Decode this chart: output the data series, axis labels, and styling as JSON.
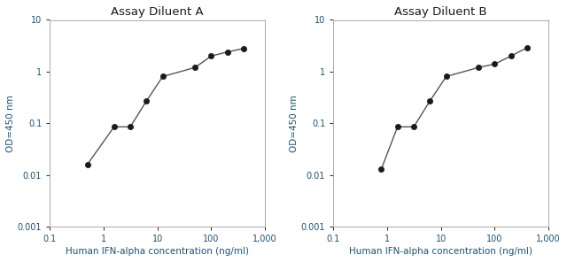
{
  "chart_A": {
    "title": "Assay Diluent A",
    "x": [
      0.5,
      1.56,
      3.125,
      6.25,
      12.5,
      50,
      100,
      200,
      400
    ],
    "y": [
      0.016,
      0.085,
      0.085,
      0.27,
      0.8,
      1.2,
      2.0,
      2.4,
      2.8
    ]
  },
  "chart_B": {
    "title": "Assay Diluent B",
    "x": [
      0.78,
      1.56,
      3.125,
      6.25,
      12.5,
      50,
      100,
      200,
      400
    ],
    "y": [
      0.013,
      0.085,
      0.085,
      0.27,
      0.8,
      1.2,
      1.4,
      2.0,
      2.9
    ]
  },
  "xlabel": "Human IFN-alpha concentration (ng/ml)",
  "ylabel": "OD=450 nm",
  "xlim": [
    0.1,
    1000
  ],
  "ylim": [
    0.001,
    10
  ],
  "line_color": "#555555",
  "marker_color": "#1a1a1a",
  "title_color": "#1a1a1a",
  "label_color": "#1a5276",
  "tick_color": "#1a5276",
  "bg_color": "#ffffff"
}
